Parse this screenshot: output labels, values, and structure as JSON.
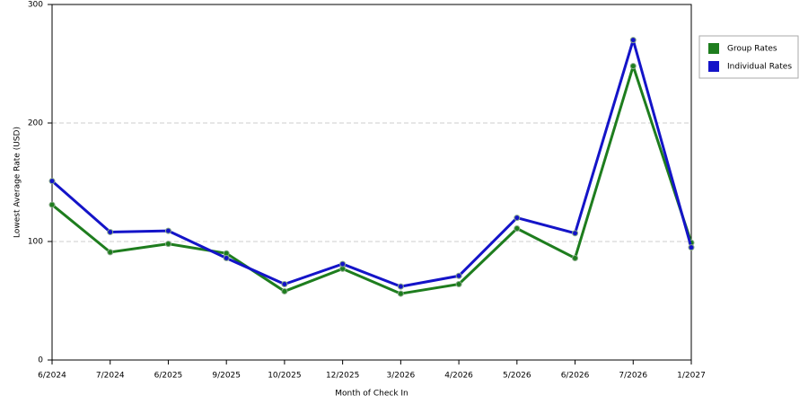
{
  "chart_data": {
    "type": "line",
    "x_label": "Month of Check In",
    "y_label": "Lowest Average Rate (USD)",
    "categories": [
      "6/2024",
      "7/2024",
      "6/2025",
      "9/2025",
      "10/2025",
      "12/2025",
      "3/2026",
      "4/2026",
      "5/2026",
      "6/2026",
      "7/2026",
      "1/2027"
    ],
    "series": [
      {
        "name": "Group Rates",
        "color": "#1e7d1e",
        "values": [
          131,
          91,
          98,
          90,
          58,
          77,
          56,
          64,
          111,
          86,
          248,
          99
        ]
      },
      {
        "name": "Individual Rates",
        "color": "#1414c8",
        "values": [
          151,
          108,
          109,
          86,
          64,
          81,
          62,
          71,
          120,
          107,
          270,
          95
        ]
      }
    ],
    "ylim": [
      0,
      300
    ],
    "yticks": [
      0,
      100,
      200,
      300
    ],
    "grid": true,
    "legend": "right"
  }
}
